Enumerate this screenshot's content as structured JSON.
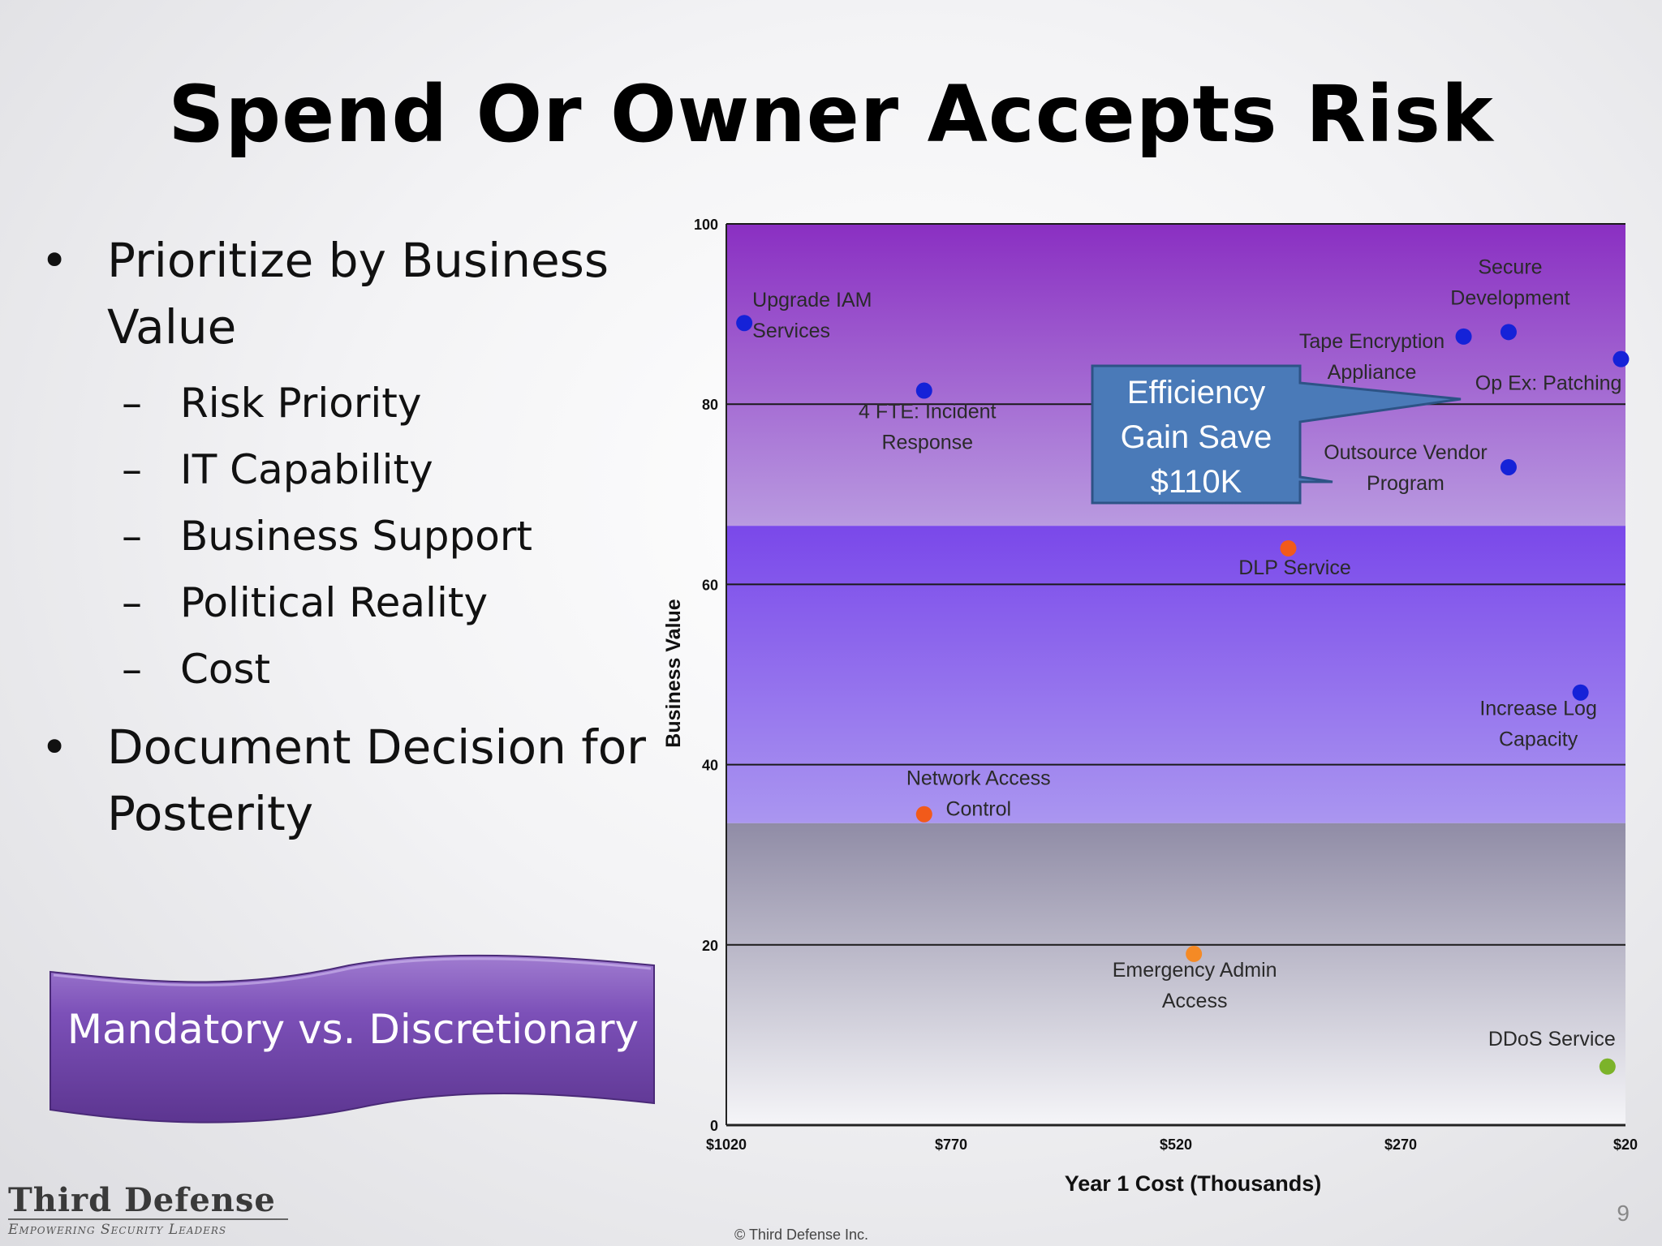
{
  "slide": {
    "title": "Spend Or Owner Accepts Risk",
    "bullets": [
      {
        "text": "Prioritize by Business Value",
        "sub": [
          "Risk Priority",
          "IT Capability",
          "Business Support",
          "Political Reality",
          "Cost"
        ]
      },
      {
        "text": "Document Decision for Posterity",
        "sub": []
      }
    ],
    "bullet_glyph": "•",
    "sub_glyph": "–",
    "banner_text": "Mandatory vs. Discretionary",
    "callout_lines": [
      "Efficiency",
      "Gain Save",
      "$110K"
    ],
    "logo_name": "Third Defense",
    "logo_tagline": "Empowering Security Leaders",
    "copyright": "© Third Defense Inc.",
    "page_number": "9"
  },
  "chart_data": {
    "type": "scatter",
    "title": "",
    "xlabel": "Year 1 Cost (Thousands)",
    "ylabel": "Business Value",
    "x_axis_reversed": true,
    "xlim": [
      1020,
      20
    ],
    "ylim": [
      0,
      100
    ],
    "x_ticks": [
      1020,
      770,
      520,
      270,
      20
    ],
    "x_tick_labels": [
      "$1020",
      "$770",
      "$520",
      "$270",
      "$20"
    ],
    "y_ticks": [
      0,
      20,
      40,
      60,
      80,
      100
    ],
    "y_tick_labels": [
      "0",
      "20",
      "40",
      "60",
      "80",
      "100"
    ],
    "bands": [
      {
        "from": 66.5,
        "to": 100,
        "color_top": "#8a2fc2",
        "color_bottom": "#b99ae0"
      },
      {
        "from": 33.5,
        "to": 66.5,
        "color_top": "#7a48ea",
        "color_bottom": "#aa96f0"
      },
      {
        "from": 0,
        "to": 33.5,
        "color_top": "#908ca6",
        "color_bottom": "#f5f5f8"
      }
    ],
    "colors": {
      "blue": "#1522d8",
      "orange": "#f25a1a",
      "lightorange": "#f58a25",
      "green": "#7cb32a"
    },
    "points": [
      {
        "label": "Upgrade IAM Services",
        "label_lines": [
          "Upgrade IAM",
          "Services"
        ],
        "x": 1000,
        "y": 89,
        "color": "blue"
      },
      {
        "label": "4 FTE: Incident Response",
        "label_lines": [
          "4 FTE: Incident",
          "Response"
        ],
        "x": 800,
        "y": 81.5,
        "color": "blue"
      },
      {
        "label": "DLP Service",
        "label_lines": [
          "DLP Service"
        ],
        "x": 395,
        "y": 64,
        "color": "orange"
      },
      {
        "label": "Tape Encryption Appliance",
        "label_lines": [
          "Tape Encryption",
          "Appliance"
        ],
        "x": 200,
        "y": 87.5,
        "color": "blue"
      },
      {
        "label": "Secure Development",
        "label_lines": [
          "Secure",
          "Development"
        ],
        "x": 150,
        "y": 88,
        "color": "blue"
      },
      {
        "label": "Op Ex: Patching",
        "label_lines": [
          "Op Ex: Patching"
        ],
        "x": 25,
        "y": 85,
        "color": "blue"
      },
      {
        "label": "Outsource Vendor Program",
        "label_lines": [
          "Outsource Vendor",
          "Program"
        ],
        "x": 150,
        "y": 73,
        "color": "blue"
      },
      {
        "label": "Increase Log Capacity",
        "label_lines": [
          "Increase Log",
          "Capacity"
        ],
        "x": 70,
        "y": 48,
        "color": "blue"
      },
      {
        "label": "Network Access Control",
        "label_lines": [
          "Network Access",
          "Control"
        ],
        "x": 800,
        "y": 34.5,
        "color": "orange"
      },
      {
        "label": "Emergency Admin Access",
        "label_lines": [
          "Emergency Admin",
          "Access"
        ],
        "x": 500,
        "y": 19,
        "color": "lightorange"
      },
      {
        "label": "DDoS Service",
        "label_lines": [
          "DDoS Service"
        ],
        "x": 40,
        "y": 6.5,
        "color": "green"
      }
    ]
  }
}
